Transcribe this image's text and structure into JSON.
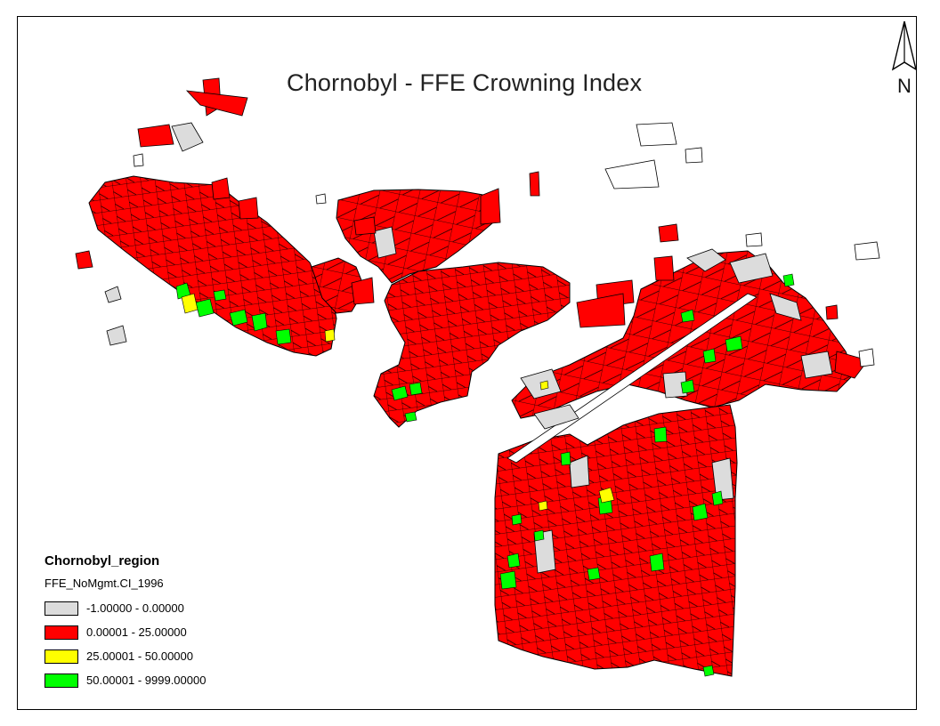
{
  "map": {
    "title": "Chornobyl - FFE Crowning Index",
    "north_label": "N",
    "legend": {
      "layer_name": "Chornobyl_region",
      "field_name": "FFE_NoMgmt.CI_1996",
      "classes": [
        {
          "label": "-1.00000 - 0.00000",
          "color": "#dcdcdc"
        },
        {
          "label": "0.00001 - 25.00000",
          "color": "#ff0000"
        },
        {
          "label": "25.00001 - 50.00000",
          "color": "#ffff00"
        },
        {
          "label": "50.00001 - 9999.00000",
          "color": "#00ff00"
        }
      ]
    }
  }
}
